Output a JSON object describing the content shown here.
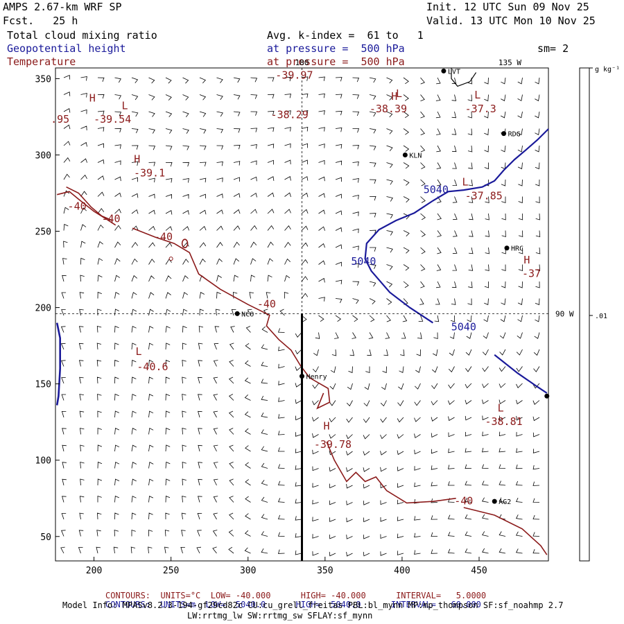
{
  "header": {
    "model": "AMPS 2.67-km WRF SP",
    "fcst": "Fcst.   25 h",
    "init": "Init. 12 UTC Sun 09 Nov 25",
    "valid": "Valid. 13 UTC Mon 10 Nov 25",
    "field1": "Total cloud mixing ratio",
    "field2": "Geopotential height",
    "field3": "Temperature",
    "avg": "Avg. k-index =  61 to   1",
    "pressure1": "at pressure =  500 hPa",
    "pressure2": "at pressure =  500 hPa",
    "sm": "sm= 2"
  },
  "colorbar": {
    "unit": "g kg⁻¹",
    "value": ".01"
  },
  "colors": {
    "temperature": "#8b1a1a",
    "geopotential": "#1a1a9a",
    "text_black": "#000000"
  },
  "chart_data": {
    "type": "contour",
    "x_ticks": [
      200,
      250,
      300,
      350,
      400,
      450
    ],
    "y_ticks": [
      50,
      100,
      150,
      200,
      250,
      300,
      350
    ],
    "xlim": [
      175,
      495
    ],
    "ylim": [
      34,
      357
    ],
    "crosshair": {
      "x": 335,
      "y": 196
    },
    "lon_labels": [
      {
        "text": "180",
        "x": 335,
        "y": 357
      },
      {
        "text": "135 W",
        "x": 470,
        "y": 357
      },
      {
        "text": "90 W",
        "x": 495,
        "y": 196
      }
    ],
    "stations": [
      {
        "name": "LVT",
        "x": 427,
        "y": 355
      },
      {
        "name": "RDG",
        "x": 466,
        "y": 314
      },
      {
        "name": "KLN",
        "x": 402,
        "y": 300
      },
      {
        "name": "HRC",
        "x": 468,
        "y": 239
      },
      {
        "name": "NCO",
        "x": 293,
        "y": 196
      },
      {
        "name": "Henry",
        "x": 335,
        "y": 155
      },
      {
        "name": "AG2",
        "x": 460,
        "y": 73
      },
      {
        "name": "",
        "x": 494,
        "y": 142
      }
    ],
    "temperature_labels": [
      {
        "text": "-39.97",
        "x": 330,
        "y": 350
      },
      {
        "text": "-38.29",
        "x": 327,
        "y": 324
      },
      {
        "text": "-38.39",
        "x": 391,
        "y": 328
      },
      {
        "text": "-37.3",
        "x": 451,
        "y": 328
      },
      {
        "text": "-39.54",
        "x": 212,
        "y": 321
      },
      {
        "text": ".95",
        "x": 178,
        "y": 321
      },
      {
        "text": "-39.1",
        "x": 236,
        "y": 286
      },
      {
        "text": "-37.85",
        "x": 453,
        "y": 271
      },
      {
        "text": "-37",
        "x": 484,
        "y": 220
      },
      {
        "text": "-40.6",
        "x": 238,
        "y": 159
      },
      {
        "text": "-38.81",
        "x": 466,
        "y": 123
      },
      {
        "text": "-39.78",
        "x": 355,
        "y": 108
      }
    ],
    "extrema_marks": [
      {
        "text": "L",
        "x": 220,
        "y": 330
      },
      {
        "text": "H",
        "x": 199,
        "y": 335
      },
      {
        "text": "H",
        "x": 395,
        "y": 336
      },
      {
        "text": "L",
        "x": 398,
        "y": 338
      },
      {
        "text": "L",
        "x": 449,
        "y": 337
      },
      {
        "text": "H",
        "x": 228,
        "y": 295
      },
      {
        "text": "L",
        "x": 441,
        "y": 280
      },
      {
        "text": "H",
        "x": 481,
        "y": 229
      },
      {
        "text": "L",
        "x": 229,
        "y": 169
      },
      {
        "text": "L",
        "x": 464,
        "y": 132
      },
      {
        "text": "H",
        "x": 351,
        "y": 120
      }
    ],
    "contours": [
      {
        "variable": "temperature",
        "level": -40,
        "label_positions": [
          {
            "x": 189,
            "y": 264
          },
          {
            "x": 211,
            "y": 256
          },
          {
            "x": 245,
            "y": 244
          },
          {
            "x": 312,
            "y": 200
          },
          {
            "x": 440,
            "y": 71
          }
        ]
      },
      {
        "variable": "geopotential",
        "level": 5040,
        "label_positions": [
          {
            "x": 422,
            "y": 275
          },
          {
            "x": 375,
            "y": 228
          },
          {
            "x": 440,
            "y": 185
          }
        ]
      }
    ],
    "footer_units": [
      {
        "label": "CONTOURS:",
        "units": "UNITS=°C",
        "low": "LOW= -40.000",
        "high": "HIGH= -40.000",
        "interval": "INTERVAL=   5.0000"
      },
      {
        "label": "CONTOURS:",
        "units": "UNITS=m",
        "low": "LOW=  5040.0",
        "high": "HIGH=  5040.0",
        "interval": "INTERVAL=   60.000"
      }
    ]
  },
  "footer": {
    "model_info": "Model Info: MPASv8.2.3-194-gf29cd82c CU:cu_grell_freitas PBL:bl_mynn MP:mp_thompson SF:sf_noahmp 2.7",
    "model_info2": "LW:rrtmg_lw SW:rrtmg_sw SFLAY:sf_mynn"
  }
}
